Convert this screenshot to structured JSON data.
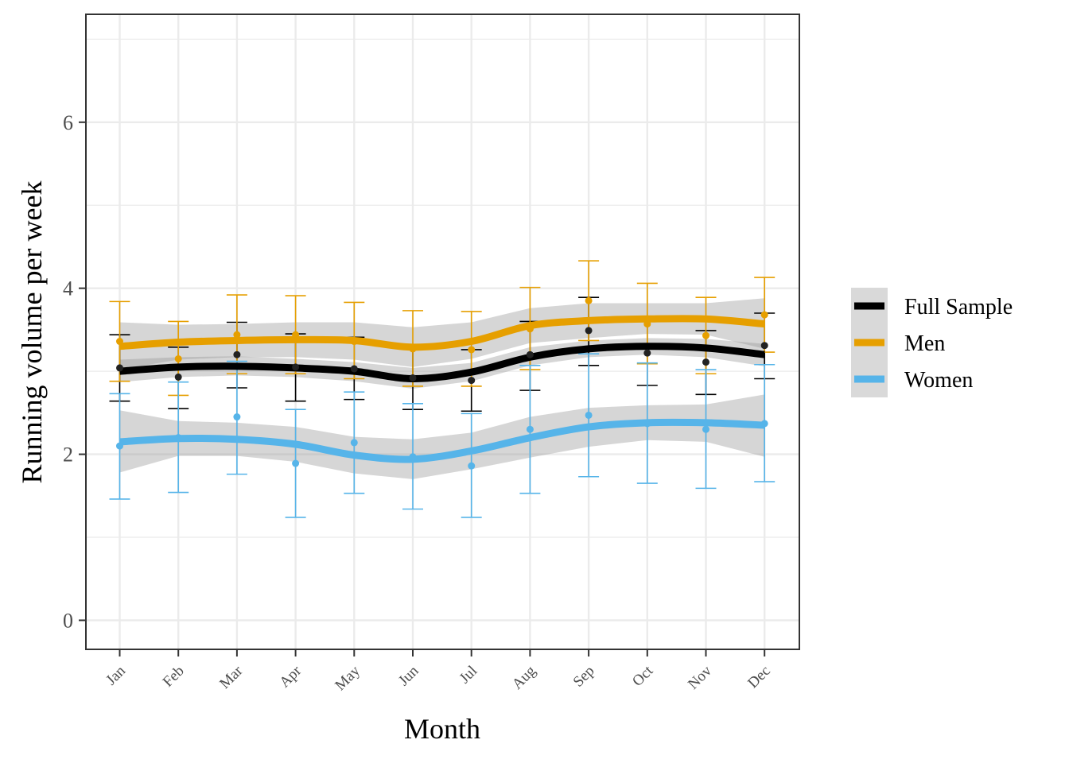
{
  "chart_data": {
    "type": "line",
    "title": "",
    "xlabel": "Month",
    "ylabel": "Running volume per week",
    "categories": [
      "Jan",
      "Feb",
      "Mar",
      "Apr",
      "May",
      "Jun",
      "Jul",
      "Aug",
      "Sep",
      "Oct",
      "Nov",
      "Dec"
    ],
    "ylim": [
      -0.35,
      7.3
    ],
    "yticks": [
      0,
      2,
      4,
      6
    ],
    "grid": true,
    "legend_position": "right",
    "series": [
      {
        "name": "Full Sample",
        "color": "#000000",
        "mean": [
          3.04,
          2.93,
          3.2,
          3.05,
          3.03,
          2.92,
          2.89,
          3.2,
          3.49,
          3.22,
          3.11,
          3.31
        ],
        "err_low": [
          2.64,
          2.55,
          2.8,
          2.64,
          2.66,
          2.54,
          2.52,
          2.77,
          3.07,
          2.83,
          2.72,
          2.91
        ],
        "err_high": [
          3.44,
          3.29,
          3.59,
          3.45,
          3.41,
          3.29,
          3.26,
          3.6,
          3.89,
          3.63,
          3.49,
          3.7
        ],
        "smooth": [
          3.0,
          3.05,
          3.06,
          3.04,
          3.0,
          2.91,
          2.99,
          3.17,
          3.27,
          3.3,
          3.28,
          3.2
        ],
        "band_low": [
          2.87,
          2.93,
          2.95,
          2.93,
          2.88,
          2.79,
          2.88,
          3.07,
          3.17,
          3.2,
          3.17,
          3.06
        ],
        "band_high": [
          3.14,
          3.17,
          3.18,
          3.15,
          3.11,
          3.04,
          3.1,
          3.29,
          3.37,
          3.4,
          3.39,
          3.33
        ]
      },
      {
        "name": "Men",
        "color": "#E69F00",
        "mean": [
          3.36,
          3.15,
          3.44,
          3.44,
          3.36,
          3.27,
          3.26,
          3.51,
          3.85,
          3.57,
          3.43,
          3.68
        ],
        "err_low": [
          2.88,
          2.71,
          2.97,
          2.97,
          2.91,
          2.82,
          2.82,
          3.02,
          3.37,
          3.09,
          2.97,
          3.23
        ],
        "err_high": [
          3.84,
          3.6,
          3.92,
          3.91,
          3.83,
          3.73,
          3.72,
          4.01,
          4.33,
          4.06,
          3.89,
          4.13
        ],
        "smooth": [
          3.3,
          3.35,
          3.37,
          3.38,
          3.37,
          3.29,
          3.36,
          3.55,
          3.61,
          3.63,
          3.63,
          3.57
        ],
        "band_low": [
          3.02,
          3.14,
          3.17,
          3.17,
          3.14,
          3.05,
          3.15,
          3.34,
          3.4,
          3.45,
          3.44,
          3.27
        ],
        "band_high": [
          3.59,
          3.56,
          3.57,
          3.59,
          3.59,
          3.53,
          3.59,
          3.76,
          3.82,
          3.82,
          3.82,
          3.88
        ]
      },
      {
        "name": "Women",
        "color": "#56B4E9",
        "mean": [
          2.1,
          2.2,
          2.45,
          1.89,
          2.14,
          1.97,
          1.86,
          2.3,
          2.47,
          2.37,
          2.3,
          2.37
        ],
        "err_low": [
          1.46,
          1.54,
          1.76,
          1.24,
          1.53,
          1.34,
          1.24,
          1.53,
          1.73,
          1.65,
          1.59,
          1.67
        ],
        "err_high": [
          2.73,
          2.87,
          3.12,
          2.54,
          2.75,
          2.61,
          2.49,
          3.07,
          3.21,
          3.1,
          3.02,
          3.08
        ],
        "smooth": [
          2.15,
          2.19,
          2.18,
          2.12,
          1.99,
          1.94,
          2.04,
          2.2,
          2.33,
          2.38,
          2.38,
          2.35
        ],
        "band_low": [
          1.78,
          1.98,
          1.98,
          1.91,
          1.77,
          1.7,
          1.82,
          1.96,
          2.09,
          2.17,
          2.15,
          1.97
        ],
        "band_high": [
          2.53,
          2.4,
          2.38,
          2.33,
          2.21,
          2.18,
          2.26,
          2.45,
          2.56,
          2.59,
          2.6,
          2.72
        ]
      }
    ]
  }
}
